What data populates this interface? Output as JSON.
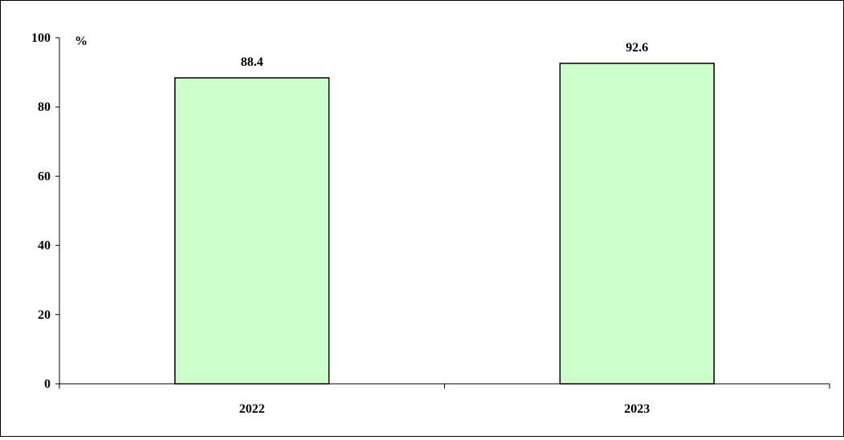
{
  "chart_data": {
    "type": "bar",
    "categories": [
      "2022",
      "2023"
    ],
    "values": [
      88.4,
      92.6
    ],
    "value_labels": [
      "88.4",
      "92.6"
    ],
    "title": "",
    "xlabel": "",
    "ylabel": "%",
    "ylim": [
      0,
      100
    ],
    "yticks": [
      "0",
      "20",
      "40",
      "60",
      "80",
      "100"
    ],
    "grid": false,
    "legend": "none",
    "bar_color": "#ccffcc",
    "bar_edge_color": "#000000"
  }
}
